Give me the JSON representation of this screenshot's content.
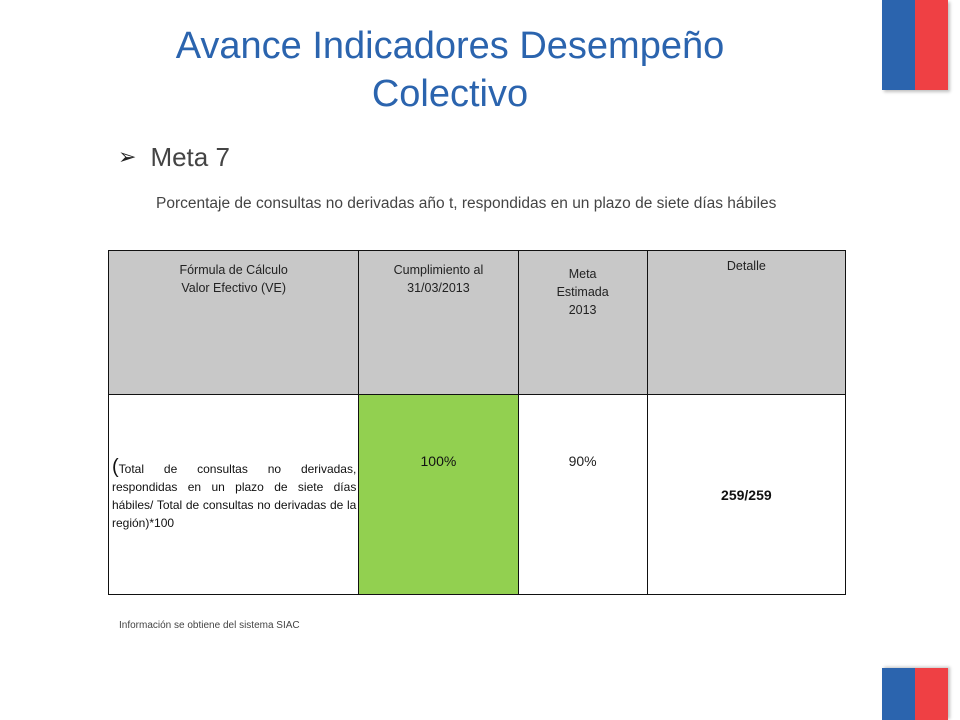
{
  "slide": {
    "title_line1": "Avance Indicadores Desempeño",
    "title_line2": "Colectivo",
    "meta_heading": "Meta 7",
    "description": "Porcentaje de consultas no derivadas año t, respondidas en un plazo de siete días hábiles",
    "footnote": "Información se obtiene del sistema SIAC"
  },
  "colors": {
    "title": "#2b64ae",
    "flag_blue": "#2b64ae",
    "flag_red": "#ef4044",
    "header_bg": "#c8c8c8",
    "highlight_green": "#92d050"
  },
  "icons": {
    "bullet": "arrow-bullet-icon"
  },
  "table": {
    "headers": [
      {
        "lines": [
          "Fórmula de Cálculo",
          "Valor Efectivo  (VE)"
        ]
      },
      {
        "lines": [
          "Cumplimiento al",
          "31/03/2013"
        ]
      },
      {
        "lines": [
          "Meta",
          "Estimada",
          "2013"
        ]
      },
      {
        "lines": [
          "Detalle"
        ]
      }
    ],
    "row": {
      "formula_paren": "(",
      "formula_text": "Total de consultas no derivadas, respondidas en un plazo de siete días hábiles/ Total de consultas no derivadas de la región)*100",
      "cumplimiento": "100%",
      "meta": "90%",
      "detalle": "259/259"
    }
  }
}
